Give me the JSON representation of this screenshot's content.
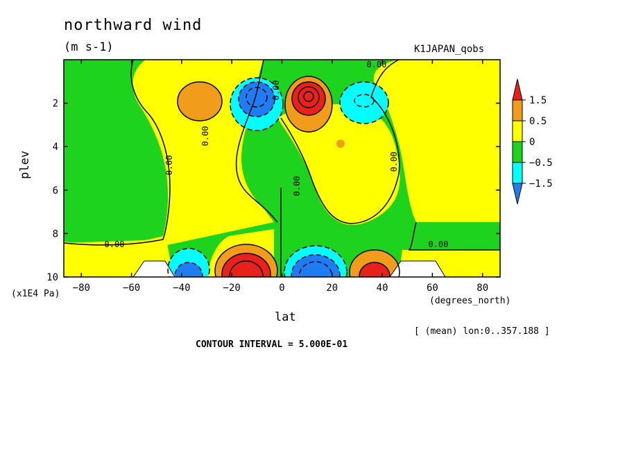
{
  "header": {
    "title": "northward wind",
    "units": "(m s-1)",
    "dataset": "K1JAPAN_qobs"
  },
  "footer": {
    "mean_note": "[ (mean) lon:0..357.188 ]",
    "contour_interval": "CONTOUR INTERVAL = 5.000E-01"
  },
  "colors": {
    "red": "#e8211c",
    "orange": "#f29c1c",
    "yellow": "#ffff00",
    "green": "#1ed31e",
    "cyan": "#00ffff",
    "blue": "#1e7df2",
    "missing": "#ffffff"
  },
  "chart_data": {
    "type": "heatmap",
    "title": "northward wind",
    "xlabel": "lat",
    "x_unit": "(degrees_north)",
    "ylabel": "plev",
    "y_unit": "(x1E4 Pa)",
    "xlim": [
      -87,
      87
    ],
    "ylim": [
      10,
      0
    ],
    "x_ticks": [
      "-80",
      "-60",
      "-40",
      "-20",
      "0",
      "20",
      "40",
      "60",
      "80"
    ],
    "y_ticks": [
      "2",
      "4",
      "6",
      "8",
      "10"
    ],
    "colorbar": {
      "labels": [
        "1.5",
        "0.5",
        "0",
        "-0.5",
        "-1.5"
      ],
      "levels": [
        -1.5,
        -0.5,
        0,
        0.5,
        1.5
      ]
    },
    "contour_labels": [
      "0.00",
      "0.00",
      "0.00",
      "0.00",
      "0.00",
      "0.00",
      "0.00",
      "0.00"
    ],
    "features": [
      {
        "lat": -10,
        "plev": 9.5,
        "sign": "positive",
        "level": "> 1.5"
      },
      {
        "lat": 10,
        "plev": 9.5,
        "sign": "negative",
        "level": "< -1.5"
      },
      {
        "lat": -38,
        "plev": 9.7,
        "sign": "negative",
        "level": "< -1.5"
      },
      {
        "lat": 38,
        "plev": 9.7,
        "sign": "positive",
        "level": "> 1.5"
      },
      {
        "lat": 10,
        "plev": 2,
        "sign": "positive",
        "level": "> 1.5"
      },
      {
        "lat": -10,
        "plev": 2,
        "sign": "negative",
        "level": "< -1.5"
      },
      {
        "lat": -35,
        "plev": 2,
        "sign": "positive",
        "level": "0.5 to 1.5"
      },
      {
        "lat": 35,
        "plev": 2,
        "sign": "negative",
        "level": "-1.5 to -0.5"
      }
    ]
  }
}
